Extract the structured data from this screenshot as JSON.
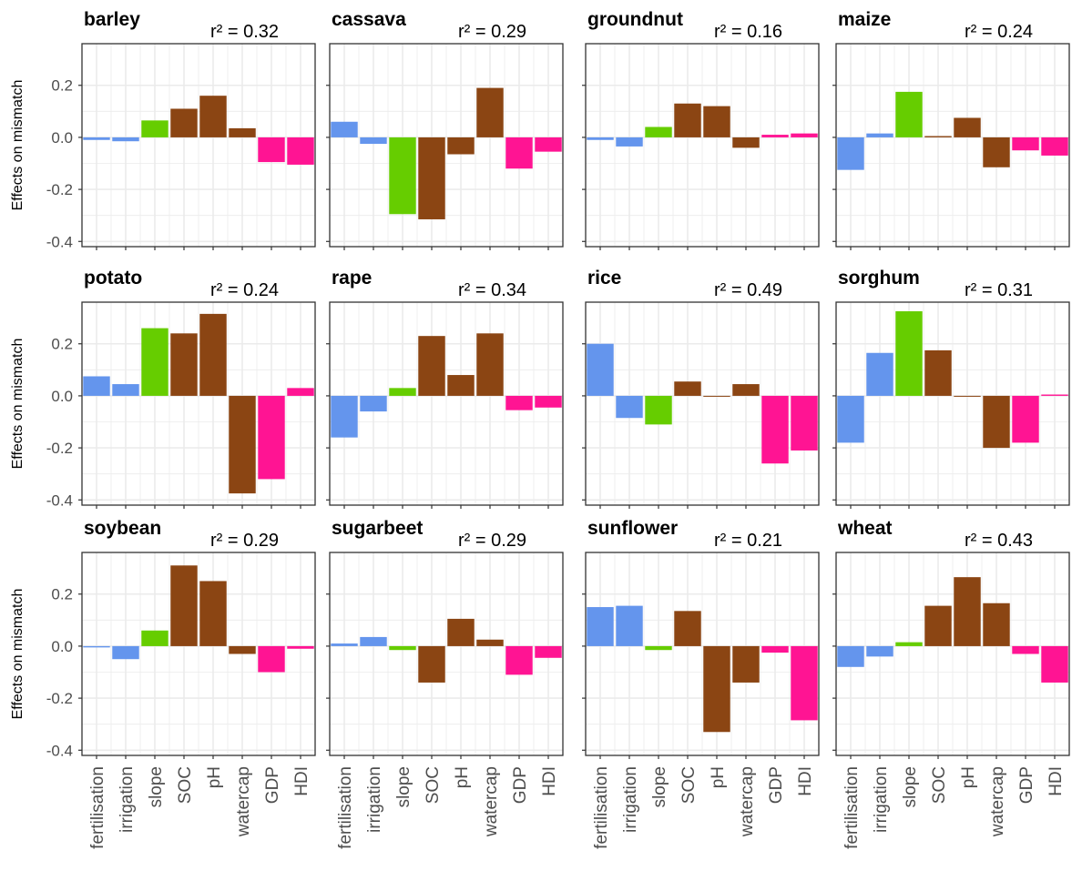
{
  "ylabel": "Effects on mismatch",
  "categories": [
    "fertilisation",
    "irrigation",
    "slope",
    "SOC",
    "pH",
    "watercap",
    "GDP",
    "HDI"
  ],
  "ytick_labels": [
    "0.2",
    "0.0",
    "-0.2",
    "-0.4"
  ],
  "colors": {
    "management": "#6495ED",
    "terrain": "#66CD00",
    "soil": "#8B4513",
    "socioeconomic": "#FF1493",
    "grid": "#EBEBEB",
    "border": "#333333"
  },
  "category_groups": [
    "management",
    "management",
    "terrain",
    "soil",
    "soil",
    "soil",
    "socioeconomic",
    "socioeconomic"
  ],
  "chart_data": {
    "type": "bar",
    "layout": "facet-grid",
    "facet_rows": 3,
    "facet_cols": 4,
    "categories": [
      "fertilisation",
      "irrigation",
      "slope",
      "SOC",
      "pH",
      "watercap",
      "GDP",
      "HDI"
    ],
    "ylabel": "Effects on mismatch",
    "ylim": [
      -0.42,
      0.36
    ],
    "yticks": [
      0.2,
      0.0,
      -0.2,
      -0.4
    ],
    "grid": true,
    "legend": "none",
    "facets": [
      {
        "name": "barley",
        "r2": "r² = 0.32",
        "values": [
          -0.01,
          -0.015,
          0.065,
          0.11,
          0.16,
          0.035,
          -0.095,
          -0.105
        ]
      },
      {
        "name": "cassava",
        "r2": "r² = 0.29",
        "values": [
          0.06,
          -0.025,
          -0.295,
          -0.315,
          -0.065,
          0.19,
          -0.12,
          -0.055
        ]
      },
      {
        "name": "groundnut",
        "r2": "r² = 0.16",
        "values": [
          -0.01,
          -0.035,
          0.04,
          0.13,
          0.12,
          -0.04,
          0.01,
          0.015
        ]
      },
      {
        "name": "maize",
        "r2": "r² = 0.24",
        "values": [
          -0.125,
          0.015,
          0.175,
          0.005,
          0.075,
          -0.115,
          -0.05,
          -0.07
        ]
      },
      {
        "name": "potato",
        "r2": "r² = 0.24",
        "values": [
          0.075,
          0.045,
          0.26,
          0.24,
          0.315,
          -0.375,
          -0.32,
          0.03
        ]
      },
      {
        "name": "rape",
        "r2": "r² = 0.34",
        "values": [
          -0.16,
          -0.06,
          0.03,
          0.23,
          0.08,
          0.24,
          -0.055,
          -0.045
        ]
      },
      {
        "name": "rice",
        "r2": "r² = 0.49",
        "values": [
          0.2,
          -0.085,
          -0.11,
          0.055,
          0.0,
          0.045,
          -0.26,
          -0.21
        ]
      },
      {
        "name": "sorghum",
        "r2": "r² = 0.31",
        "values": [
          -0.18,
          0.165,
          0.325,
          0.175,
          0.0,
          -0.2,
          -0.18,
          0.005
        ]
      },
      {
        "name": "soybean",
        "r2": "r² = 0.29",
        "values": [
          -0.005,
          -0.05,
          0.06,
          0.31,
          0.25,
          -0.03,
          -0.1,
          -0.01
        ]
      },
      {
        "name": "sugarbeet",
        "r2": "r² = 0.29",
        "values": [
          0.01,
          0.035,
          -0.015,
          -0.14,
          0.105,
          0.025,
          -0.11,
          -0.045
        ]
      },
      {
        "name": "sunflower",
        "r2": "r² = 0.21",
        "values": [
          0.15,
          0.155,
          -0.015,
          0.135,
          -0.33,
          -0.14,
          -0.025,
          -0.285
        ]
      },
      {
        "name": "wheat",
        "r2": "r² = 0.43",
        "values": [
          -0.08,
          -0.04,
          0.015,
          0.155,
          0.265,
          0.165,
          -0.03,
          -0.14
        ]
      }
    ]
  }
}
